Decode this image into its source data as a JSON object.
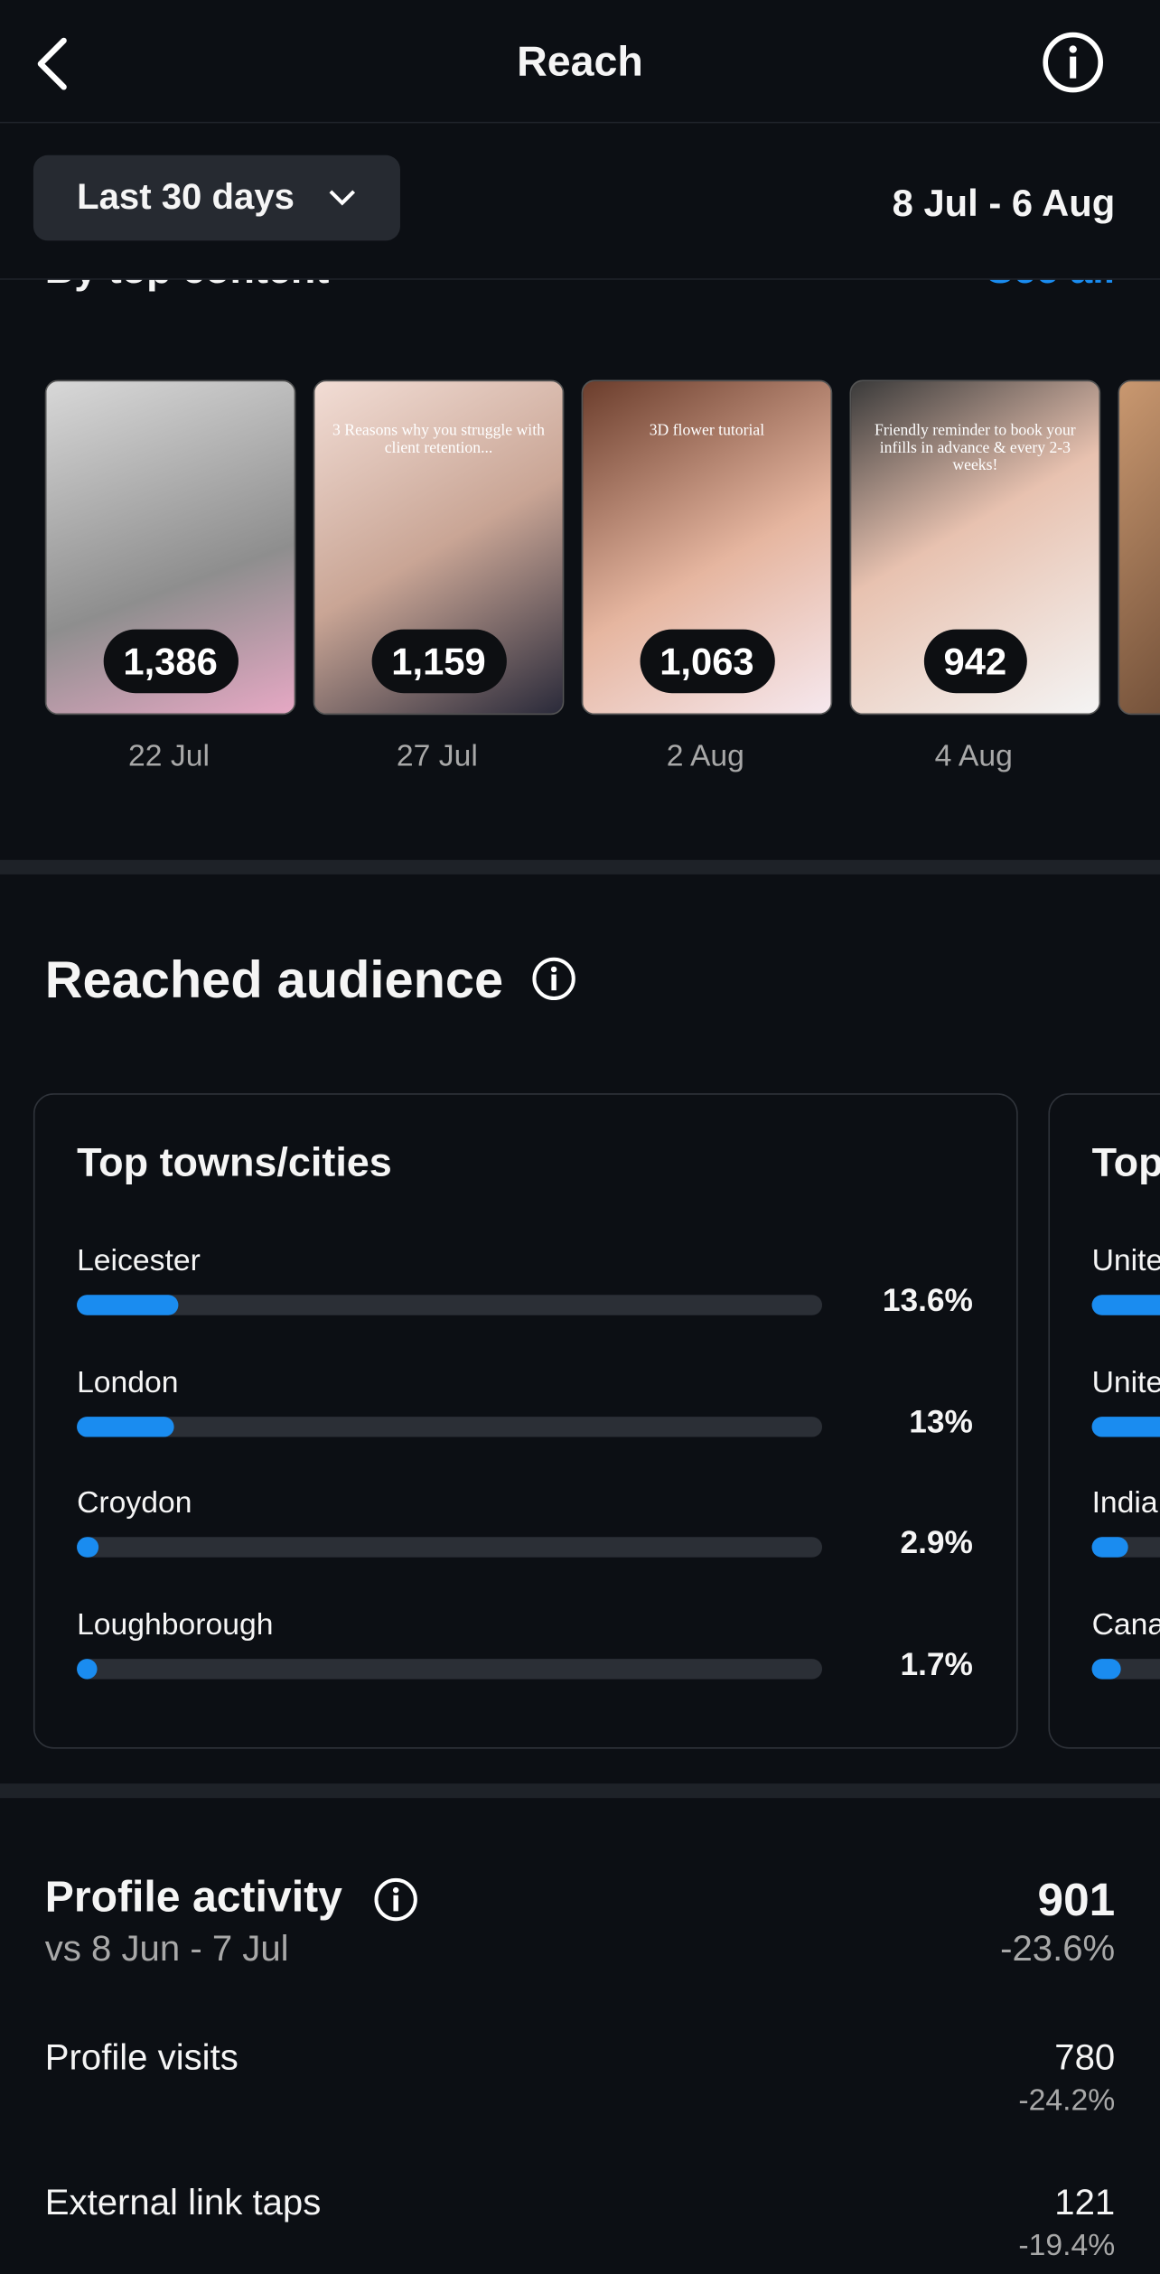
{
  "header": {
    "title": "Reach"
  },
  "filter": {
    "range": "Last 30 days",
    "dates": "8 Jul - 6 Aug"
  },
  "top_content": {
    "heading": "By top content",
    "see_all": "See all",
    "posts": [
      {
        "views": "1,386",
        "date": "22 Jul"
      },
      {
        "views": "1,159",
        "date": "27 Jul",
        "caption": "3 Reasons why you struggle with client retention..."
      },
      {
        "views": "1,063",
        "date": "2 Aug",
        "caption": "3D flower tutorial"
      },
      {
        "views": "942",
        "date": "4 Aug",
        "caption": "Friendly reminder to book your infills in advance & every 2-3 weeks!"
      }
    ]
  },
  "reached_audience": {
    "heading": "Reached audience",
    "top_towns": {
      "title": "Top towns/cities",
      "items": [
        {
          "name": "Leicester",
          "value": 13.6,
          "value_label": "13.6%"
        },
        {
          "name": "London",
          "value": 13,
          "value_label": "13%"
        },
        {
          "name": "Croydon",
          "value": 2.9,
          "value_label": "2.9%"
        },
        {
          "name": "Loughborough",
          "value": 1.7,
          "value_label": "1.7%"
        }
      ]
    },
    "second_card": {
      "title": "Top",
      "items": [
        "Unite",
        "Unite",
        "India",
        "Cana"
      ]
    }
  },
  "profile_activity": {
    "title": "Profile activity",
    "comparison": "vs 8 Jun - 7 Jul",
    "value": 901,
    "change": "-23.6%",
    "rows": [
      {
        "label": "Profile visits",
        "value": 780,
        "change": "-24.2%"
      },
      {
        "label": "External link taps",
        "value": 121,
        "change": "-19.4%"
      }
    ]
  }
}
